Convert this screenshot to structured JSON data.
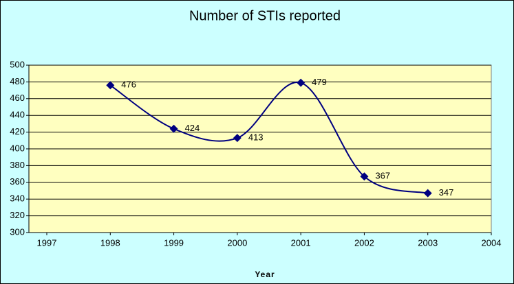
{
  "chart_data": {
    "type": "line",
    "title": "Number of STIs reported",
    "x_label": "Year",
    "x": [
      1998,
      1999,
      2000,
      2001,
      2002,
      2003
    ],
    "series": [
      {
        "name": "STIs",
        "color": "#000080",
        "values": [
          476,
          424,
          413,
          479,
          367,
          347
        ]
      }
    ],
    "xlim": [
      1997,
      2004
    ],
    "xticks": [
      1997,
      1998,
      1999,
      2000,
      2001,
      2002,
      2003,
      2004
    ],
    "ylim": [
      300,
      500
    ],
    "yticks": [
      300,
      320,
      340,
      360,
      380,
      400,
      420,
      440,
      460,
      480,
      500
    ],
    "grid": true,
    "smooth": true
  }
}
